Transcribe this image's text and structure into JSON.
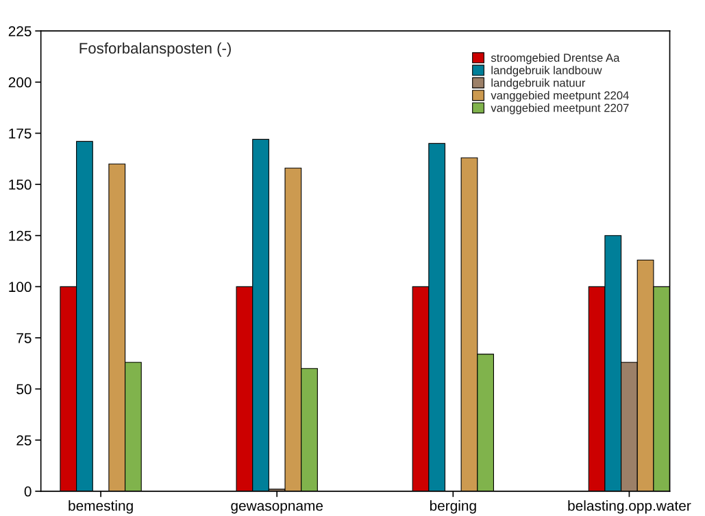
{
  "chart_data": {
    "type": "bar",
    "title": "Fosforbalansposten (-)",
    "categories": [
      "bemesting",
      "gewasopname",
      "berging",
      "belasting.opp.water"
    ],
    "series": [
      {
        "name": "stroomgebied Drentse Aa",
        "color": "#cc0000",
        "values": [
          100,
          100,
          100,
          100
        ]
      },
      {
        "name": "landgebruik landbouw",
        "color": "#007f99",
        "values": [
          171,
          172,
          170,
          125
        ]
      },
      {
        "name": "landgebruik natuur",
        "color": "#9c8068",
        "values": [
          0,
          1,
          0,
          63
        ]
      },
      {
        "name": "vanggebied meetpunt 2204",
        "color": "#cc9a50",
        "values": [
          160,
          158,
          163,
          113
        ]
      },
      {
        "name": "vanggebied meetpunt 2207",
        "color": "#80b34c",
        "values": [
          63,
          60,
          67,
          100
        ]
      }
    ],
    "ylim": [
      0,
      225
    ],
    "yticks": [
      0,
      25,
      50,
      75,
      100,
      125,
      150,
      175,
      200,
      225
    ],
    "grid": false,
    "legend": "top right"
  }
}
